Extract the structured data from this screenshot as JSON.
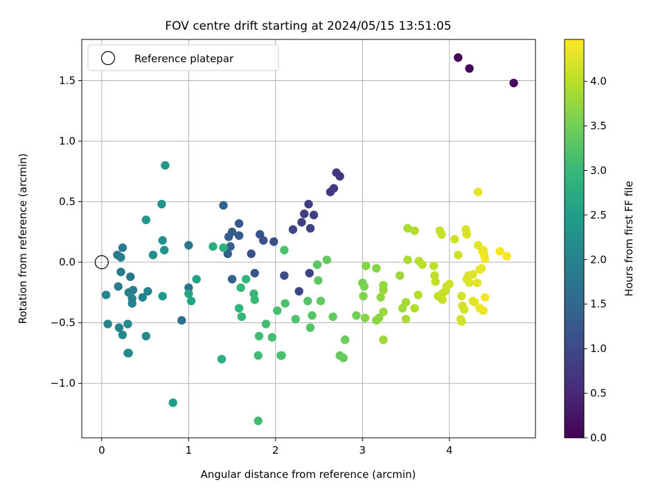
{
  "chart_data": {
    "type": "scatter",
    "title": "FOV centre drift starting at 2024/05/15 13:51:05",
    "xlabel": "Angular distance from reference (arcmin)",
    "ylabel": "Rotation from reference (arcmin)",
    "xlim": [
      -0.23,
      4.99
    ],
    "ylim": [
      -1.45,
      1.84
    ],
    "xticks": [
      0,
      1,
      2,
      3,
      4
    ],
    "xtick_labels": [
      "0",
      "1",
      "2",
      "3",
      "4"
    ],
    "yticks": [
      -1.0,
      -0.5,
      0.0,
      0.5,
      1.0,
      1.5
    ],
    "ytick_labels": [
      "−1.0",
      "−0.5",
      "0.0",
      "0.5",
      "1.0",
      "1.5"
    ],
    "grid": true,
    "legend": {
      "location": "upper-left",
      "entries": [
        "Reference platepar"
      ]
    },
    "reference_point": {
      "x": 0,
      "y": 0,
      "marker": "hollow-circle"
    },
    "colorbar": {
      "label": "Hours from first FF file",
      "colormap": "viridis",
      "range": [
        0,
        4.47
      ],
      "ticks": [
        0.0,
        0.5,
        1.0,
        1.5,
        2.0,
        2.5,
        3.0,
        3.5,
        4.0
      ],
      "tick_labels": [
        "0.0",
        "0.5",
        "1.0",
        "1.5",
        "2.0",
        "2.5",
        "3.0",
        "3.5",
        "4.0"
      ]
    },
    "colormap_stops": [
      "#440154",
      "#482878",
      "#3e4989",
      "#31688e",
      "#26828e",
      "#1f9e89",
      "#35b779",
      "#6ece58",
      "#b5de2b",
      "#fde725"
    ],
    "points": [
      {
        "x": 4.1,
        "y": 1.69,
        "t": 0.05
      },
      {
        "x": 4.23,
        "y": 1.6,
        "t": 0.08
      },
      {
        "x": 4.74,
        "y": 1.48,
        "t": 0.1
      },
      {
        "x": 2.7,
        "y": 0.74,
        "t": 0.7
      },
      {
        "x": 2.74,
        "y": 0.71,
        "t": 0.72
      },
      {
        "x": 2.67,
        "y": 0.61,
        "t": 0.75
      },
      {
        "x": 2.63,
        "y": 0.58,
        "t": 0.77
      },
      {
        "x": 2.38,
        "y": 0.48,
        "t": 0.8
      },
      {
        "x": 2.33,
        "y": 0.4,
        "t": 0.82
      },
      {
        "x": 2.44,
        "y": 0.39,
        "t": 0.84
      },
      {
        "x": 2.3,
        "y": 0.33,
        "t": 0.86
      },
      {
        "x": 2.4,
        "y": 0.28,
        "t": 0.88
      },
      {
        "x": 2.2,
        "y": 0.27,
        "t": 0.9
      },
      {
        "x": 2.39,
        "y": -0.09,
        "t": 0.92
      },
      {
        "x": 2.27,
        "y": -0.24,
        "t": 0.95
      },
      {
        "x": 2.1,
        "y": -0.11,
        "t": 1.05
      },
      {
        "x": 1.98,
        "y": 0.17,
        "t": 1.1
      },
      {
        "x": 1.86,
        "y": 0.18,
        "t": 1.12
      },
      {
        "x": 1.82,
        "y": 0.23,
        "t": 1.14
      },
      {
        "x": 1.72,
        "y": 0.07,
        "t": 1.16
      },
      {
        "x": 1.76,
        "y": -0.09,
        "t": 1.2
      },
      {
        "x": 1.58,
        "y": 0.32,
        "t": 1.25
      },
      {
        "x": 1.58,
        "y": 0.22,
        "t": 1.27
      },
      {
        "x": 1.5,
        "y": 0.25,
        "t": 1.3
      },
      {
        "x": 1.46,
        "y": 0.21,
        "t": 1.32
      },
      {
        "x": 1.48,
        "y": 0.13,
        "t": 1.34
      },
      {
        "x": 1.45,
        "y": 0.07,
        "t": 1.36
      },
      {
        "x": 1.5,
        "y": -0.14,
        "t": 1.4
      },
      {
        "x": 1.4,
        "y": 0.47,
        "t": 1.42
      },
      {
        "x": 0.92,
        "y": -0.48,
        "t": 1.65
      },
      {
        "x": 1.0,
        "y": -0.21,
        "t": 1.72
      },
      {
        "x": 1.0,
        "y": 0.14,
        "t": 1.78
      },
      {
        "x": 0.33,
        "y": -0.12,
        "t": 1.8
      },
      {
        "x": 0.24,
        "y": 0.12,
        "t": 1.82
      },
      {
        "x": 0.18,
        "y": 0.06,
        "t": 1.84
      },
      {
        "x": 0.22,
        "y": 0.04,
        "t": 1.86
      },
      {
        "x": 0.22,
        "y": -0.08,
        "t": 1.88
      },
      {
        "x": 0.19,
        "y": -0.2,
        "t": 1.9
      },
      {
        "x": 0.36,
        "y": -0.23,
        "t": 1.92
      },
      {
        "x": 0.31,
        "y": -0.25,
        "t": 1.94
      },
      {
        "x": 0.35,
        "y": -0.3,
        "t": 1.96
      },
      {
        "x": 0.35,
        "y": -0.34,
        "t": 1.98
      },
      {
        "x": 0.47,
        "y": -0.29,
        "t": 2.0
      },
      {
        "x": 0.53,
        "y": -0.24,
        "t": 2.02
      },
      {
        "x": 0.05,
        "y": -0.27,
        "t": 2.04
      },
      {
        "x": 0.07,
        "y": -0.51,
        "t": 2.06
      },
      {
        "x": 0.2,
        "y": -0.54,
        "t": 2.08
      },
      {
        "x": 0.24,
        "y": -0.6,
        "t": 2.1
      },
      {
        "x": 0.3,
        "y": -0.51,
        "t": 2.12
      },
      {
        "x": 0.3,
        "y": -0.75,
        "t": 2.14
      },
      {
        "x": 0.31,
        "y": -0.75,
        "t": 2.15
      },
      {
        "x": 0.51,
        "y": -0.61,
        "t": 2.1
      },
      {
        "x": 0.59,
        "y": 0.06,
        "t": 2.2
      },
      {
        "x": 0.7,
        "y": 0.18,
        "t": 2.25
      },
      {
        "x": 0.72,
        "y": 0.1,
        "t": 2.28
      },
      {
        "x": 0.69,
        "y": 0.48,
        "t": 2.3
      },
      {
        "x": 0.51,
        "y": 0.35,
        "t": 2.35
      },
      {
        "x": 0.73,
        "y": 0.8,
        "t": 2.4
      },
      {
        "x": 0.7,
        "y": -0.28,
        "t": 2.45
      },
      {
        "x": 0.82,
        "y": -1.16,
        "t": 2.5
      },
      {
        "x": 1.09,
        "y": -0.14,
        "t": 2.55
      },
      {
        "x": 1.0,
        "y": -0.26,
        "t": 2.6
      },
      {
        "x": 1.03,
        "y": -0.32,
        "t": 2.62
      },
      {
        "x": 1.28,
        "y": 0.13,
        "t": 2.75
      },
      {
        "x": 1.38,
        "y": -0.8,
        "t": 2.8
      },
      {
        "x": 1.4,
        "y": 0.12,
        "t": 2.82
      },
      {
        "x": 1.58,
        "y": -0.38,
        "t": 2.9
      },
      {
        "x": 1.61,
        "y": -0.45,
        "t": 2.92
      },
      {
        "x": 1.6,
        "y": -0.21,
        "t": 2.95
      },
      {
        "x": 1.66,
        "y": -0.14,
        "t": 2.97
      },
      {
        "x": 1.75,
        "y": -0.26,
        "t": 3.0
      },
      {
        "x": 1.76,
        "y": -0.31,
        "t": 3.02
      },
      {
        "x": 1.8,
        "y": -0.77,
        "t": 3.05
      },
      {
        "x": 1.81,
        "y": -0.61,
        "t": 3.07
      },
      {
        "x": 1.8,
        "y": -1.31,
        "t": 3.08
      },
      {
        "x": 1.89,
        "y": -0.51,
        "t": 3.1
      },
      {
        "x": 1.96,
        "y": -0.62,
        "t": 3.12
      },
      {
        "x": 2.02,
        "y": -0.4,
        "t": 3.14
      },
      {
        "x": 2.06,
        "y": -0.77,
        "t": 3.16
      },
      {
        "x": 2.07,
        "y": -0.77,
        "t": 3.17
      },
      {
        "x": 2.1,
        "y": 0.1,
        "t": 3.18
      },
      {
        "x": 2.11,
        "y": -0.34,
        "t": 3.2
      },
      {
        "x": 2.23,
        "y": -0.47,
        "t": 3.22
      },
      {
        "x": 2.37,
        "y": -0.32,
        "t": 3.25
      },
      {
        "x": 2.42,
        "y": -0.44,
        "t": 3.27
      },
      {
        "x": 2.4,
        "y": -0.54,
        "t": 3.28
      },
      {
        "x": 2.48,
        "y": -0.02,
        "t": 3.3
      },
      {
        "x": 2.49,
        "y": -0.15,
        "t": 3.32
      },
      {
        "x": 2.52,
        "y": -0.32,
        "t": 3.34
      },
      {
        "x": 2.59,
        "y": 0.02,
        "t": 3.36
      },
      {
        "x": 2.66,
        "y": -0.45,
        "t": 3.38
      },
      {
        "x": 2.74,
        "y": -0.77,
        "t": 3.4
      },
      {
        "x": 2.78,
        "y": -0.79,
        "t": 3.42
      },
      {
        "x": 2.8,
        "y": -0.64,
        "t": 3.44
      },
      {
        "x": 2.93,
        "y": -0.44,
        "t": 3.5
      },
      {
        "x": 3.0,
        "y": -0.17,
        "t": 3.55
      },
      {
        "x": 3.02,
        "y": -0.2,
        "t": 3.57
      },
      {
        "x": 3.01,
        "y": -0.28,
        "t": 3.6
      },
      {
        "x": 3.03,
        "y": -0.46,
        "t": 3.62
      },
      {
        "x": 3.04,
        "y": -0.03,
        "t": 3.64
      },
      {
        "x": 3.16,
        "y": -0.05,
        "t": 3.66
      },
      {
        "x": 3.16,
        "y": -0.48,
        "t": 3.68
      },
      {
        "x": 3.19,
        "y": -0.46,
        "t": 3.7
      },
      {
        "x": 3.21,
        "y": -0.29,
        "t": 3.72
      },
      {
        "x": 3.24,
        "y": -0.19,
        "t": 3.74
      },
      {
        "x": 3.24,
        "y": -0.23,
        "t": 3.76
      },
      {
        "x": 3.24,
        "y": -0.41,
        "t": 3.78
      },
      {
        "x": 3.24,
        "y": -0.64,
        "t": 3.8
      },
      {
        "x": 3.43,
        "y": -0.11,
        "t": 3.82
      },
      {
        "x": 3.46,
        "y": -0.38,
        "t": 3.84
      },
      {
        "x": 3.5,
        "y": -0.33,
        "t": 3.86
      },
      {
        "x": 3.5,
        "y": -0.47,
        "t": 3.88
      },
      {
        "x": 3.52,
        "y": 0.28,
        "t": 3.9
      },
      {
        "x": 3.52,
        "y": 0.02,
        "t": 3.92
      },
      {
        "x": 3.6,
        "y": 0.26,
        "t": 3.94
      },
      {
        "x": 3.6,
        "y": -0.38,
        "t": 3.95
      },
      {
        "x": 3.64,
        "y": -0.27,
        "t": 3.96
      },
      {
        "x": 3.65,
        "y": 0.01,
        "t": 3.98
      },
      {
        "x": 3.69,
        "y": -0.02,
        "t": 4.0
      },
      {
        "x": 3.82,
        "y": -0.03,
        "t": 4.02
      },
      {
        "x": 3.83,
        "y": -0.11,
        "t": 4.03
      },
      {
        "x": 3.84,
        "y": -0.16,
        "t": 4.04
      },
      {
        "x": 3.87,
        "y": -0.28,
        "t": 4.05
      },
      {
        "x": 3.89,
        "y": 0.26,
        "t": 4.06
      },
      {
        "x": 3.91,
        "y": 0.23,
        "t": 4.07
      },
      {
        "x": 3.92,
        "y": -0.26,
        "t": 4.08
      },
      {
        "x": 3.92,
        "y": -0.31,
        "t": 4.09
      },
      {
        "x": 3.95,
        "y": -0.24,
        "t": 4.1
      },
      {
        "x": 3.97,
        "y": -0.2,
        "t": 4.12
      },
      {
        "x": 4.0,
        "y": -0.18,
        "t": 4.13
      },
      {
        "x": 4.06,
        "y": 0.19,
        "t": 4.14
      },
      {
        "x": 4.1,
        "y": 0.06,
        "t": 4.15
      },
      {
        "x": 4.13,
        "y": -0.47,
        "t": 4.16
      },
      {
        "x": 4.14,
        "y": -0.49,
        "t": 4.17
      },
      {
        "x": 4.14,
        "y": -0.28,
        "t": 4.18
      },
      {
        "x": 4.15,
        "y": -0.36,
        "t": 4.19
      },
      {
        "x": 4.17,
        "y": -0.39,
        "t": 4.2
      },
      {
        "x": 4.19,
        "y": 0.27,
        "t": 4.21
      },
      {
        "x": 4.2,
        "y": 0.23,
        "t": 4.22
      },
      {
        "x": 4.2,
        "y": -0.14,
        "t": 4.23
      },
      {
        "x": 4.22,
        "y": -0.11,
        "t": 4.24
      },
      {
        "x": 4.23,
        "y": -0.17,
        "t": 4.25
      },
      {
        "x": 4.27,
        "y": -0.1,
        "t": 4.26
      },
      {
        "x": 4.27,
        "y": -0.32,
        "t": 4.27
      },
      {
        "x": 4.29,
        "y": -0.33,
        "t": 4.28
      },
      {
        "x": 4.32,
        "y": -0.17,
        "t": 4.29
      },
      {
        "x": 4.33,
        "y": 0.14,
        "t": 4.3
      },
      {
        "x": 4.33,
        "y": 0.58,
        "t": 4.31
      },
      {
        "x": 4.35,
        "y": -0.06,
        "t": 4.32
      },
      {
        "x": 4.35,
        "y": -0.38,
        "t": 4.33
      },
      {
        "x": 4.37,
        "y": -0.05,
        "t": 4.34
      },
      {
        "x": 4.38,
        "y": 0.09,
        "t": 4.35
      },
      {
        "x": 4.39,
        "y": 0.1,
        "t": 4.36
      },
      {
        "x": 4.39,
        "y": -0.4,
        "t": 4.37
      },
      {
        "x": 4.4,
        "y": 0.06,
        "t": 4.38
      },
      {
        "x": 4.41,
        "y": 0.03,
        "t": 4.39
      },
      {
        "x": 4.41,
        "y": -0.29,
        "t": 4.4
      },
      {
        "x": 4.58,
        "y": 0.09,
        "t": 4.42
      },
      {
        "x": 4.66,
        "y": 0.05,
        "t": 4.44
      }
    ]
  }
}
